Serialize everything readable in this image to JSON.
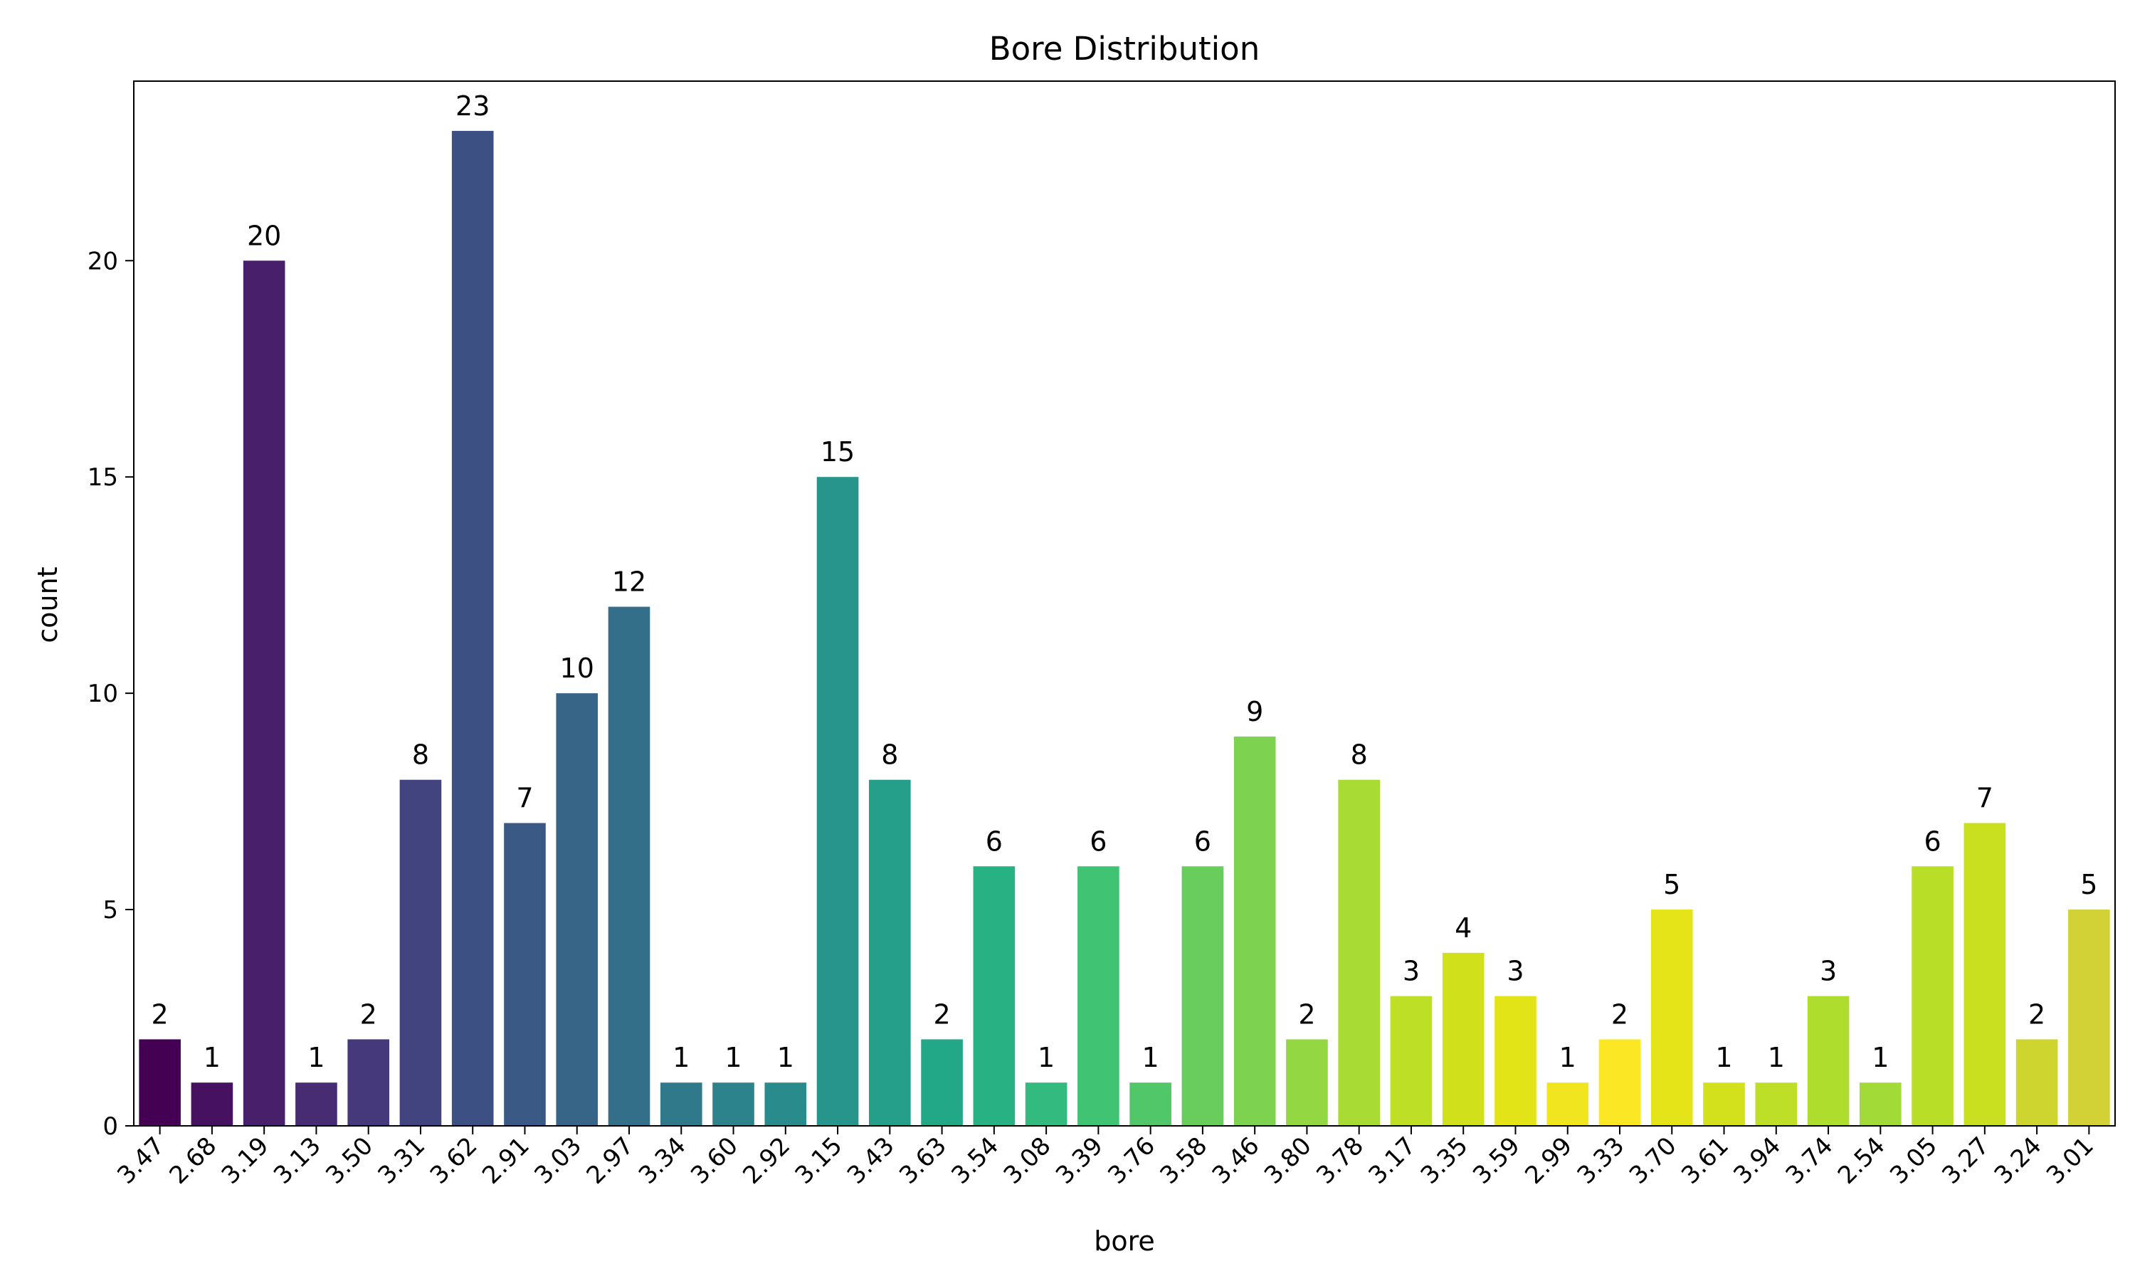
{
  "chart_data": {
    "type": "bar",
    "title": "Bore Distribution",
    "xlabel": "bore",
    "ylabel": "count",
    "ylim": [
      0,
      24.15
    ],
    "yticks": [
      0,
      5,
      10,
      15,
      20
    ],
    "grid": false,
    "legend": "none",
    "categories": [
      "3.47",
      "2.68",
      "3.19",
      "3.13",
      "3.50",
      "3.31",
      "3.62",
      "2.91",
      "3.03",
      "2.97",
      "3.34",
      "3.60",
      "2.92",
      "3.15",
      "3.43",
      "3.63",
      "3.54",
      "3.08",
      "3.39",
      "3.76",
      "3.58",
      "3.46",
      "3.80",
      "3.78",
      "3.17",
      "3.35",
      "3.59",
      "2.99",
      "3.33",
      "3.70",
      "3.61",
      "3.94",
      "3.74",
      "2.54",
      "3.05",
      "3.27",
      "3.24",
      "3.01"
    ],
    "values": [
      2,
      1,
      20,
      1,
      2,
      8,
      23,
      7,
      10,
      12,
      1,
      1,
      1,
      15,
      8,
      2,
      6,
      1,
      6,
      1,
      6,
      9,
      2,
      8,
      3,
      4,
      3,
      1,
      2,
      5,
      1,
      1,
      3,
      1,
      6,
      7,
      2,
      5
    ],
    "colors": [
      "#440154",
      "#461160",
      "#481F6B",
      "#472C74",
      "#45387B",
      "#41447F",
      "#3D5084",
      "#3B5985",
      "#366587",
      "#346F8A",
      "#2F798B",
      "#2C838C",
      "#2A8B8C",
      "#27958B",
      "#259F8A",
      "#23A887",
      "#28B183",
      "#33BA7E",
      "#40C373",
      "#52C769",
      "#68CD5C",
      "#7DD250",
      "#93D743",
      "#A8DB34",
      "#BDDF26",
      "#D0E11C",
      "#E2E418",
      "#F0E51E",
      "#FBE723",
      "#E4E419",
      "#D2E11C",
      "#BEDF27",
      "#AFDD2E",
      "#A2DA37",
      "#B9DE28",
      "#C9E020",
      "#CDD52E",
      "#D2D136"
    ]
  }
}
